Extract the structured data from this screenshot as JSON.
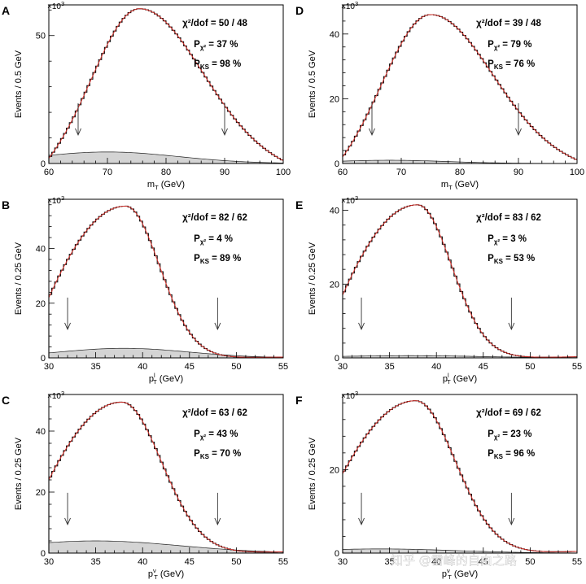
{
  "figure": {
    "watermark": "知乎 @雪峰的自由之路"
  },
  "chart_data": [
    {
      "id": "A",
      "type": "histogram",
      "panel_label": "A",
      "xlabel_main": "m",
      "xlabel_sub": "T",
      "xlabel_rest": " (GeV)",
      "ylabel": "Events / 0.5 GeV",
      "scale": "×10",
      "scale_exp": "3",
      "xlim": [
        60,
        100
      ],
      "ylim": [
        0,
        62
      ],
      "xticks": [
        60,
        70,
        80,
        90,
        100
      ],
      "yticks": [
        0,
        50
      ],
      "peak_x": 75.5,
      "peak_y": 60.5,
      "width_left": 7.8,
      "width_right": 10.5,
      "start_y": 2,
      "tail_y": 1.1,
      "background_peak_y": 4.5,
      "background_center": 70,
      "background_width": 12,
      "arrows_x": [
        65,
        90
      ],
      "arrow_top_y": 26,
      "stats": {
        "chi2_label": "χ²/dof = 50 / 48",
        "p_chi2_label": "P",
        "p_chi2_sub": "χ²",
        "p_chi2_value": " = 37 %",
        "p_ks_label": "P",
        "p_ks_sub": "KS",
        "p_ks_value": " = 98 %"
      }
    },
    {
      "id": "D",
      "type": "histogram",
      "panel_label": "D",
      "xlabel_main": "m",
      "xlabel_sub": "T",
      "xlabel_rest": " (GeV)",
      "ylabel": "Events / 0.5 GeV",
      "scale": "×10",
      "scale_exp": "3",
      "xlim": [
        60,
        100
      ],
      "ylim": [
        0,
        49
      ],
      "xticks": [
        60,
        70,
        80,
        90,
        100
      ],
      "yticks": [
        0,
        20,
        40
      ],
      "peak_x": 75,
      "peak_y": 46,
      "width_left": 7.8,
      "width_right": 10.5,
      "start_y": 2,
      "tail_y": 1.1,
      "background_peak_y": 1.0,
      "background_center": 68,
      "background_width": 10,
      "arrows_x": [
        65,
        90
      ],
      "arrow_top_y": 26,
      "stats": {
        "chi2_label": "χ²/dof = 39 / 48",
        "p_chi2_label": "P",
        "p_chi2_sub": "χ²",
        "p_chi2_value": " = 79 %",
        "p_ks_label": "P",
        "p_ks_sub": "KS",
        "p_ks_value": " = 76 %"
      }
    },
    {
      "id": "B",
      "type": "histogram",
      "panel_label": "B",
      "xlabel_main": "p",
      "xlabel_sub": "T",
      "xlabel_sup": "l",
      "xlabel_rest": " (GeV)",
      "ylabel": "Events / 0.25 GeV",
      "scale": "×10",
      "scale_exp": "3",
      "xlim": [
        30,
        55
      ],
      "ylim": [
        0,
        58
      ],
      "xticks": [
        30,
        35,
        40,
        45,
        50,
        55
      ],
      "yticks": [
        0,
        20,
        40
      ],
      "peak_x": 38.2,
      "peak_y": 55.5,
      "width_left": 9.0,
      "width_right": 3.6,
      "start_y": 22,
      "tail_y": 0.3,
      "background_peak_y": 3.5,
      "background_center": 38,
      "background_width": 7,
      "arrows_x": [
        32,
        48
      ],
      "arrow_top_y": 17,
      "stats": {
        "chi2_label": "χ²/dof = 82 / 62",
        "p_chi2_label": "P",
        "p_chi2_sub": "χ²",
        "p_chi2_value": " = 4 %",
        "p_ks_label": "P",
        "p_ks_sub": "KS",
        "p_ks_value": " = 89 %"
      }
    },
    {
      "id": "E",
      "type": "histogram",
      "panel_label": "E",
      "xlabel_main": "p",
      "xlabel_sub": "T",
      "xlabel_sup": "l",
      "xlabel_rest": " (GeV)",
      "ylabel": "Events / 0.25 GeV",
      "scale": "×10",
      "scale_exp": "3",
      "xlim": [
        30,
        55
      ],
      "ylim": [
        0,
        43
      ],
      "xticks": [
        30,
        35,
        40,
        45,
        50,
        55
      ],
      "yticks": [
        0,
        20,
        40
      ],
      "peak_x": 38,
      "peak_y": 41.5,
      "width_left": 9.0,
      "width_right": 3.6,
      "start_y": 17,
      "tail_y": 0.3,
      "background_peak_y": 0.6,
      "background_center": 37,
      "background_width": 8,
      "arrows_x": [
        32,
        48
      ],
      "arrow_top_y": 17,
      "stats": {
        "chi2_label": "χ²/dof = 83 / 62",
        "p_chi2_label": "P",
        "p_chi2_sub": "χ²",
        "p_chi2_value": " = 3 %",
        "p_ks_label": "P",
        "p_ks_sub": "KS",
        "p_ks_value": " = 53 %"
      }
    },
    {
      "id": "C",
      "type": "histogram",
      "panel_label": "C",
      "xlabel_main": "p",
      "xlabel_sub": "T",
      "xlabel_sup": "ν",
      "xlabel_rest": " (GeV)",
      "ylabel": "Events / 0.25 GeV",
      "scale": "×10",
      "scale_exp": "3",
      "xlim": [
        30,
        55
      ],
      "ylim": [
        0,
        52
      ],
      "xticks": [
        30,
        35,
        40,
        45,
        50,
        55
      ],
      "yticks": [
        0,
        20,
        40
      ],
      "peak_x": 37.8,
      "peak_y": 49.5,
      "width_left": 9.0,
      "width_right": 4.2,
      "start_y": 24,
      "tail_y": 0.4,
      "background_peak_y": 4.0,
      "background_center": 35,
      "background_width": 9,
      "arrows_x": [
        32,
        48
      ],
      "arrow_top_y": 17,
      "stats": {
        "chi2_label": "χ²/dof = 63 / 62",
        "p_chi2_label": "P",
        "p_chi2_sub": "χ²",
        "p_chi2_value": " = 43 %",
        "p_ks_label": "P",
        "p_ks_sub": "KS",
        "p_ks_value": " = 70 %"
      }
    },
    {
      "id": "F",
      "type": "histogram",
      "panel_label": "F",
      "xlabel_main": "p",
      "xlabel_sub": "T",
      "xlabel_sup": "ν",
      "xlabel_rest": " (GeV)",
      "ylabel": "Events / 0.25 GeV",
      "scale": "×10",
      "scale_exp": "3",
      "xlim": [
        30,
        55
      ],
      "ylim": [
        0,
        38
      ],
      "xticks": [
        30,
        35,
        40,
        45,
        50,
        55
      ],
      "yticks": [
        0,
        20
      ],
      "peak_x": 37.8,
      "peak_y": 36.5,
      "width_left": 9.0,
      "width_right": 4.2,
      "start_y": 19,
      "tail_y": 0.4,
      "background_peak_y": 1.0,
      "background_center": 34,
      "background_width": 8,
      "arrows_x": [
        32,
        48
      ],
      "arrow_top_y": 17,
      "stats": {
        "chi2_label": "χ²/dof = 69 / 62",
        "p_chi2_label": "P",
        "p_chi2_sub": "χ²",
        "p_chi2_value": " = 23 %",
        "p_ks_label": "P",
        "p_ks_sub": "KS",
        "p_ks_value": " = 96 %"
      }
    }
  ]
}
